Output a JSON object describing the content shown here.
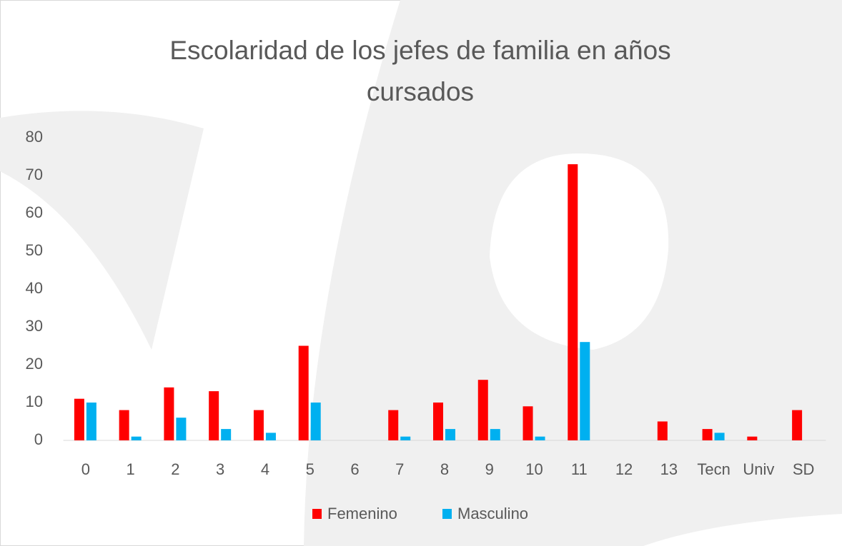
{
  "chart_data": {
    "type": "bar",
    "title": "Escolaridad de los jefes de familia en años cursados",
    "categories": [
      "0",
      "1",
      "2",
      "3",
      "4",
      "5",
      "6",
      "7",
      "8",
      "9",
      "10",
      "11",
      "12",
      "13",
      "Tecn",
      "Univ",
      "SD"
    ],
    "series": [
      {
        "name": "Femenino",
        "color": "#ff0000",
        "values": [
          11,
          8,
          14,
          13,
          8,
          25,
          0,
          8,
          10,
          16,
          9,
          73,
          0,
          5,
          3,
          1,
          8
        ]
      },
      {
        "name": "Masculino",
        "color": "#00b0f0",
        "values": [
          10,
          1,
          6,
          3,
          2,
          10,
          0,
          1,
          3,
          3,
          1,
          26,
          0,
          0,
          2,
          0,
          0
        ]
      }
    ],
    "ylim": [
      0,
      80
    ],
    "yticks": [
      0,
      10,
      20,
      30,
      40,
      50,
      60,
      70,
      80
    ],
    "grid": false,
    "legend": "bottom"
  }
}
